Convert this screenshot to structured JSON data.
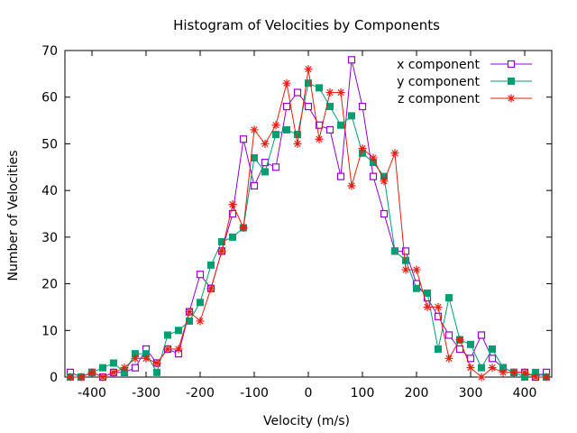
{
  "chart_data": {
    "type": "line",
    "title": "Histogram of Velocities by Components",
    "xlabel": "Velocity (m/s)",
    "ylabel": "Number of Velocities",
    "xlim": [
      -450,
      450
    ],
    "ylim": [
      0,
      70
    ],
    "xticks": [
      -400,
      -300,
      -200,
      -100,
      0,
      100,
      200,
      300,
      400
    ],
    "yticks": [
      0,
      10,
      20,
      30,
      40,
      50,
      60,
      70
    ],
    "grid": false,
    "legend_position": "top-right",
    "x": [
      -440,
      -420,
      -400,
      -380,
      -360,
      -340,
      -320,
      -300,
      -280,
      -260,
      -240,
      -220,
      -200,
      -180,
      -160,
      -140,
      -120,
      -100,
      -80,
      -60,
      -40,
      -20,
      0,
      20,
      40,
      60,
      80,
      100,
      120,
      140,
      160,
      180,
      200,
      220,
      240,
      260,
      280,
      300,
      320,
      340,
      360,
      380,
      400,
      420,
      440
    ],
    "series": [
      {
        "name": "x component",
        "color": "#9400d3",
        "marker": "open-square",
        "values": [
          1,
          0,
          1,
          0,
          1,
          1,
          2,
          6,
          3,
          6,
          5,
          14,
          22,
          19,
          27,
          35,
          51,
          41,
          46,
          45,
          58,
          61,
          58,
          54,
          53,
          43,
          68,
          58,
          43,
          35,
          27,
          27,
          20,
          17,
          13,
          9,
          6,
          4,
          9,
          4,
          2,
          1,
          1,
          0,
          1
        ]
      },
      {
        "name": "y component",
        "color": "#009e73",
        "marker": "filled-square",
        "values": [
          0,
          0,
          1,
          2,
          3,
          1,
          5,
          5,
          1,
          9,
          10,
          12,
          16,
          24,
          29,
          30,
          32,
          47,
          44,
          52,
          53,
          52,
          63,
          62,
          58,
          54,
          56,
          48,
          46,
          43,
          27,
          25,
          19,
          18,
          6,
          17,
          8,
          7,
          2,
          6,
          2,
          1,
          0,
          1,
          0
        ]
      },
      {
        "name": "z component",
        "color": "#e51e10",
        "marker": "asterisk",
        "values": [
          0,
          0,
          1,
          0,
          1,
          2,
          4,
          4,
          3,
          6,
          6,
          14,
          12,
          19,
          27,
          37,
          32,
          53,
          50,
          54,
          63,
          50,
          66,
          51,
          61,
          61,
          41,
          49,
          47,
          42,
          48,
          23,
          23,
          15,
          15,
          4,
          8,
          2,
          0,
          2,
          1,
          1,
          1,
          0,
          0
        ]
      }
    ]
  }
}
